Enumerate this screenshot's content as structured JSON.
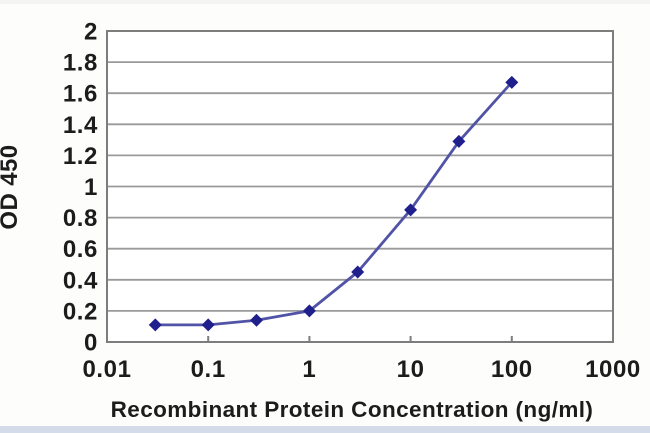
{
  "chart_data": {
    "type": "line",
    "title": "",
    "xlabel": "Recombinant Protein Concentration (ng/ml)",
    "ylabel": "OD 450",
    "x_scale": "log",
    "xlim": [
      0.01,
      1000
    ],
    "ylim": [
      0,
      2
    ],
    "x_ticks": [
      0.01,
      0.1,
      1,
      10,
      100,
      1000
    ],
    "x_tick_labels": [
      "0.01",
      "0.1",
      "1",
      "10",
      "100",
      "1000"
    ],
    "y_ticks": [
      0,
      0.2,
      0.4,
      0.6,
      0.8,
      1,
      1.2,
      1.4,
      1.6,
      1.8,
      2
    ],
    "y_tick_labels": [
      "0",
      "0.2",
      "0.4",
      "0.6",
      "0.8",
      "1",
      "1.2",
      "1.4",
      "1.6",
      "1.8",
      "2"
    ],
    "grid": "horizontal",
    "legend": "none",
    "series": [
      {
        "name": "OD 450",
        "x": [
          0.03,
          0.1,
          0.3,
          1,
          3,
          10,
          30,
          100
        ],
        "y": [
          0.11,
          0.11,
          0.14,
          0.2,
          0.45,
          0.85,
          1.29,
          1.67
        ],
        "marker": "diamond",
        "line_color": "#5153a7",
        "marker_color": "#20208d"
      }
    ]
  },
  "colors": {
    "background": "#fdfdfc",
    "plot_background": "#ffffff",
    "grid": "#9a9a9a",
    "border": "#7d7d7d",
    "text": "#1c1c1c",
    "top_edge_tint": "#f0f0ee",
    "bottom_edge_tint": "#c9d2e4"
  }
}
